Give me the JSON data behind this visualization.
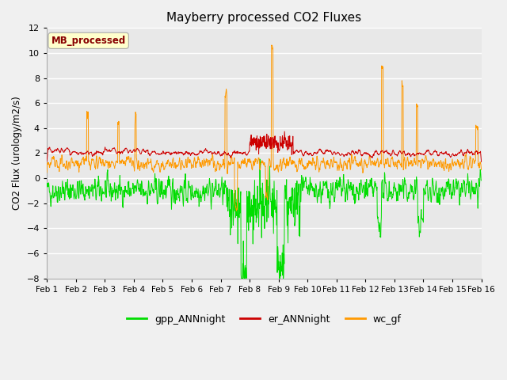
{
  "title": "Mayberry processed CO2 Fluxes",
  "ylabel": "CO2 Flux (urology/m2/s)",
  "ylim": [
    -8,
    12
  ],
  "yticks": [
    -8,
    -6,
    -4,
    -2,
    0,
    2,
    4,
    6,
    8,
    10,
    12
  ],
  "xlim_days": [
    0,
    15
  ],
  "x_tick_labels": [
    "Feb 1",
    "Feb 2",
    "Feb 3",
    "Feb 4",
    "Feb 5",
    "Feb 6",
    "Feb 7",
    "Feb 8",
    "Feb 9",
    "Feb 10",
    "Feb 11",
    "Feb 12",
    "Feb 13",
    "Feb 14",
    "Feb 15",
    "Feb 16"
  ],
  "legend_labels": [
    "gpp_ANNnight",
    "er_ANNnight",
    "wc_gf"
  ],
  "line_colors": [
    "#00dd00",
    "#cc0000",
    "#ff9900"
  ],
  "annotation_text": "MB_processed",
  "annotation_color": "#880000",
  "annotation_bg": "#ffffcc",
  "annotation_border": "#aaaaaa",
  "fig_bg": "#f0f0f0",
  "plot_bg": "#e8e8e8",
  "grid_color": "#ffffff",
  "n_points": 1500,
  "seed": 42
}
